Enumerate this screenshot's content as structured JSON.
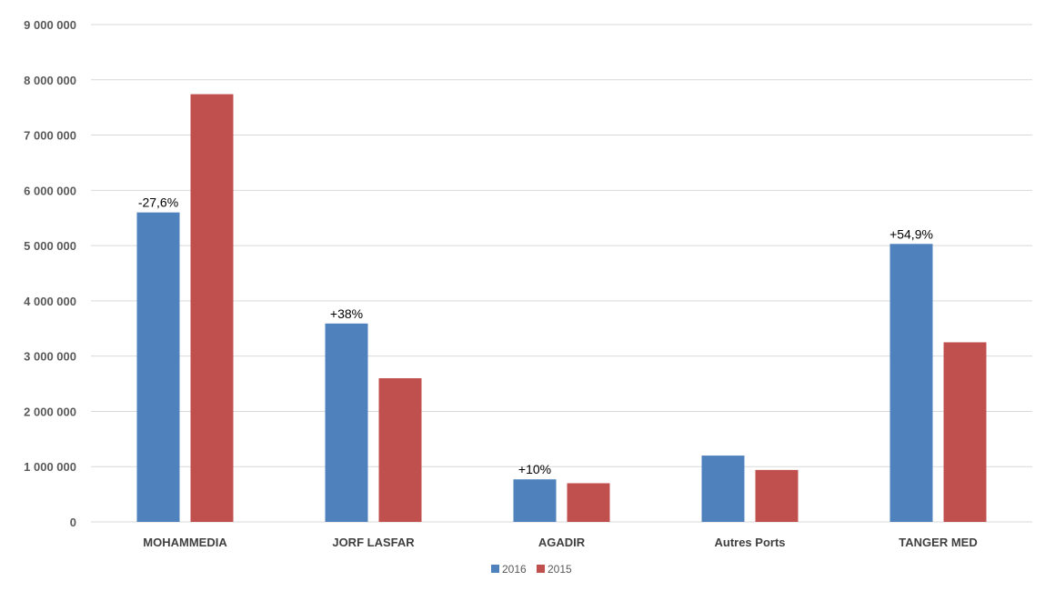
{
  "chart_data": {
    "type": "bar",
    "title": "",
    "xlabel": "",
    "ylabel": "",
    "categories": [
      "MOHAMMEDIA",
      "JORF LASFAR",
      "AGADIR",
      "Autres Ports",
      "TANGER MED"
    ],
    "series": [
      {
        "name": "2016",
        "color": "#4F81BD",
        "values": [
          5600000,
          3590000,
          770000,
          1200000,
          5030000
        ],
        "labels": [
          "-27,6%",
          "+38%",
          "+10%",
          "",
          "+54,9%"
        ]
      },
      {
        "name": "2015",
        "color": "#C0504D",
        "values": [
          7740000,
          2600000,
          700000,
          940000,
          3250000
        ],
        "labels": [
          "",
          "",
          "",
          "",
          ""
        ]
      }
    ],
    "ylim": [
      0,
      9000000
    ],
    "yticks": [
      0,
      1000000,
      2000000,
      3000000,
      4000000,
      5000000,
      6000000,
      7000000,
      8000000,
      9000000
    ],
    "ytick_labels": [
      "0",
      "1 000 000",
      "2 000 000",
      "3 000 000",
      "4 000 000",
      "5 000 000",
      "6 000 000",
      "7 000 000",
      "8 000 000",
      "9 000 000"
    ],
    "grid": true,
    "gridline_color": "#D9D9D9",
    "legend_position": "bottom"
  }
}
